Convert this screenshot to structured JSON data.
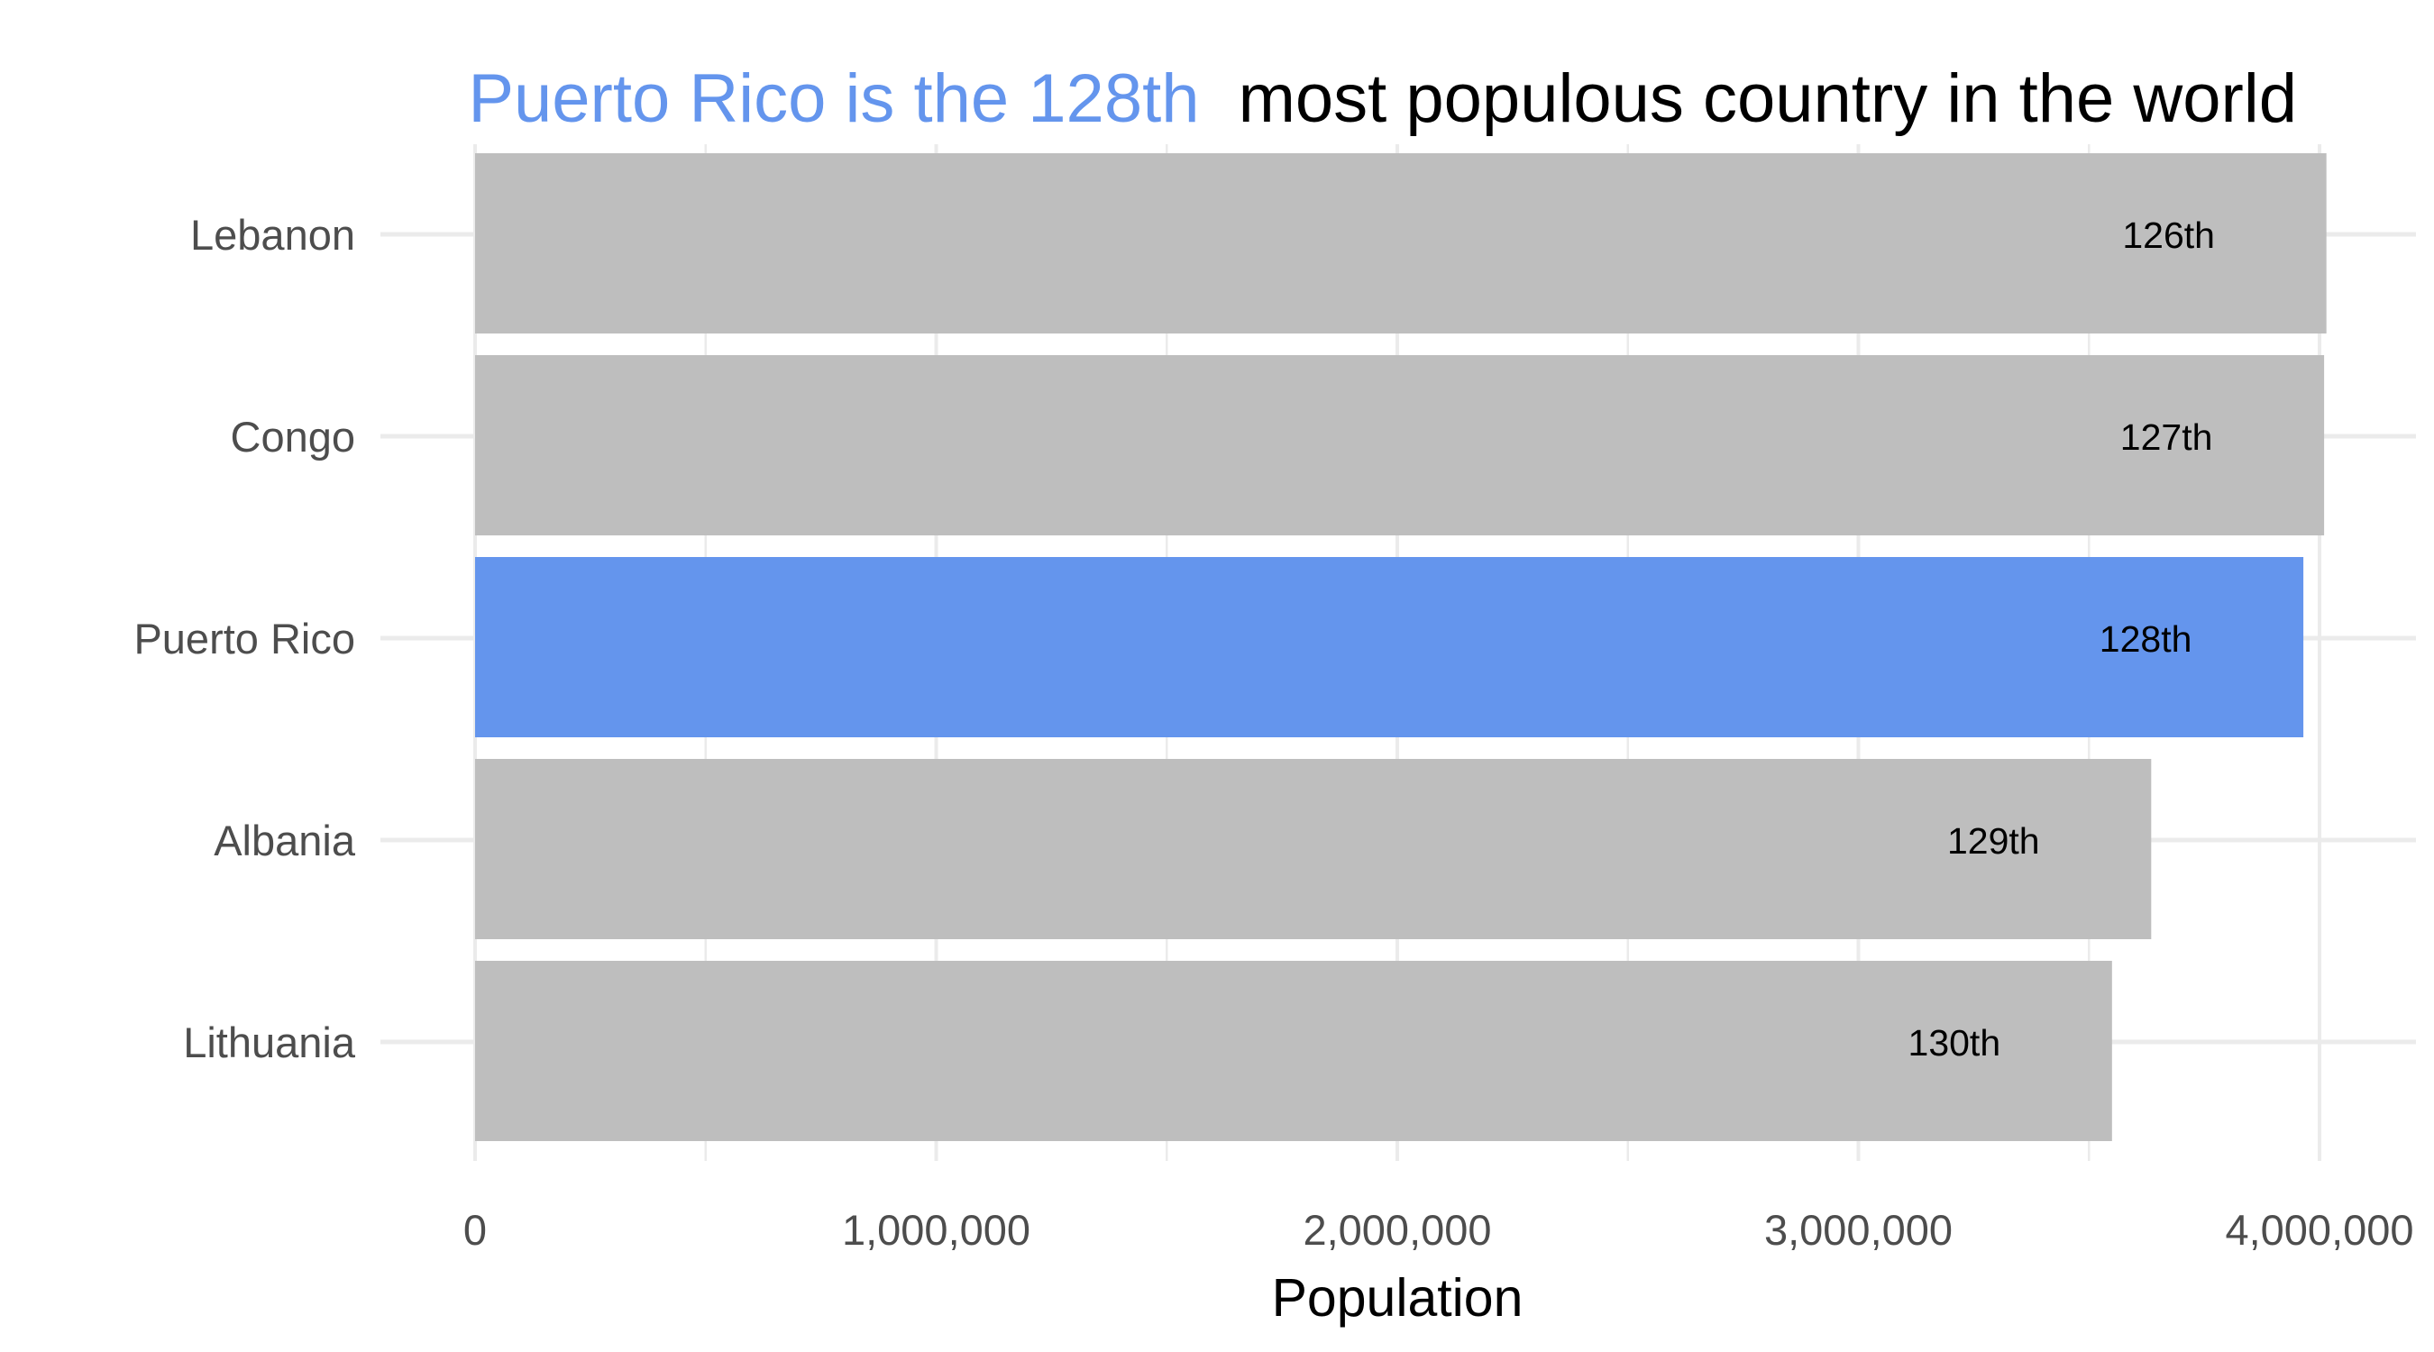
{
  "chart_data": {
    "type": "bar",
    "orientation": "horizontal",
    "title_highlight": "Puerto Rico is the 128th",
    "title_rest": "most populous country in the world",
    "xlabel": "Population",
    "ylabel": "",
    "xlim": [
      0,
      4000000
    ],
    "x_ticks": [
      0,
      1000000,
      2000000,
      3000000,
      4000000
    ],
    "x_tick_labels": [
      "0",
      "1,000,000",
      "2,000,000",
      "3,000,000",
      "4,000,000"
    ],
    "categories": [
      "Lebanon",
      "Congo",
      "Puerto Rico",
      "Albania",
      "Lithuania"
    ],
    "values": [
      4015000,
      4010000,
      3965000,
      3635000,
      3550000
    ],
    "bar_labels": [
      "126th",
      "127th",
      "128th",
      "129th",
      "130th"
    ],
    "highlight_category": "Puerto Rico",
    "grid": true,
    "legend": "none"
  },
  "colors": {
    "highlight": "#6495ED",
    "bar": "#BEBEBE",
    "grid": "#EBEBEB",
    "title_rest": "#000000"
  }
}
